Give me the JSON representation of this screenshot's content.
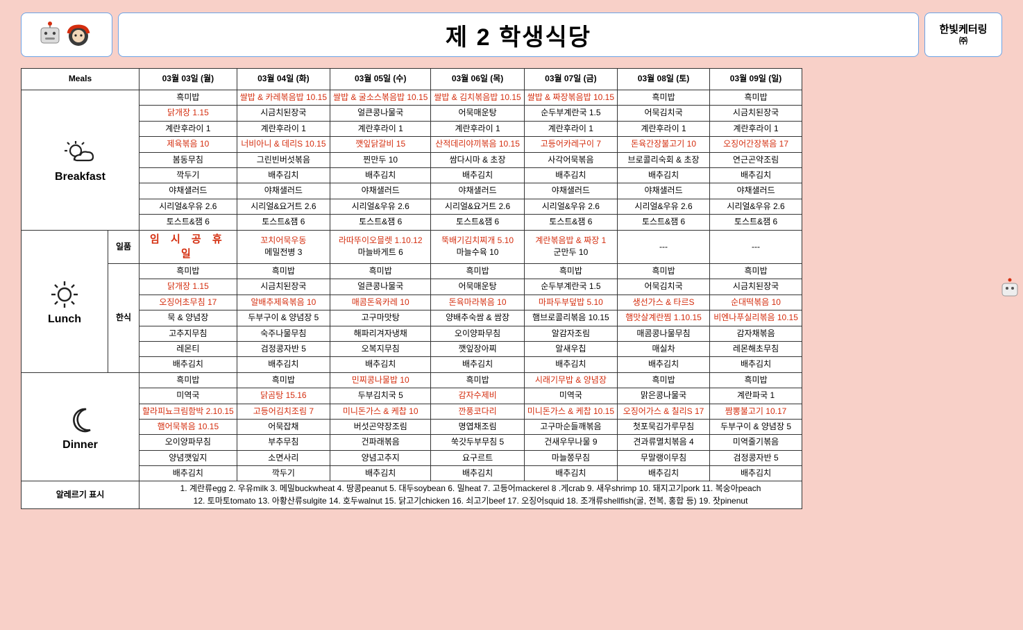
{
  "header": {
    "title": "제 2 학생식당",
    "brand": "한빛케터링",
    "brand_sub": "㈜"
  },
  "columns": {
    "meals_header": "Meals",
    "dates": [
      "03월 03일 (월)",
      "03월 04일 (화)",
      "03월 05일 (수)",
      "03월 06일 (목)",
      "03월 07일 (금)",
      "03월 08일 (토)",
      "03월 09일 (일)"
    ]
  },
  "meals": {
    "breakfast": {
      "label": "Breakfast",
      "rows": [
        [
          {
            "t": "흑미밥"
          },
          {
            "t": "쌀밥 & 카레볶음밥 10.15",
            "r": 1
          },
          {
            "t": "쌀밥 & 굴소스볶음밥 10.15",
            "r": 1
          },
          {
            "t": "쌀밥 & 김치볶음밥 10.15",
            "r": 1
          },
          {
            "t": "쌀밥 & 짜장볶음밥 10.15",
            "r": 1
          },
          {
            "t": "흑미밥"
          },
          {
            "t": "흑미밥"
          }
        ],
        [
          {
            "t": "닭개장 1.15",
            "r": 1
          },
          {
            "t": "시금치된장국"
          },
          {
            "t": "얼큰콩나물국"
          },
          {
            "t": "어묵매운탕"
          },
          {
            "t": "순두부계란국 1.5"
          },
          {
            "t": "어묵김치국"
          },
          {
            "t": "시금치된장국"
          }
        ],
        [
          {
            "t": "계란후라이 1"
          },
          {
            "t": "계란후라이 1"
          },
          {
            "t": "계란후라이 1"
          },
          {
            "t": "계란후라이 1"
          },
          {
            "t": "계란후라이 1"
          },
          {
            "t": "계란후라이 1"
          },
          {
            "t": "계란후라이 1"
          }
        ],
        [
          {
            "t": "제육볶음 10",
            "r": 1
          },
          {
            "t": "너비아니 & 데리S 10.15",
            "r": 1
          },
          {
            "t": "깻잎닭갈비 15",
            "r": 1
          },
          {
            "t": "산적데리야끼볶음 10.15",
            "r": 1
          },
          {
            "t": "고등어카레구이 7",
            "r": 1
          },
          {
            "t": "돈육간장불고기 10",
            "r": 1
          },
          {
            "t": "오징어간장볶음 17",
            "r": 1
          }
        ],
        [
          {
            "t": "봄동무침"
          },
          {
            "t": "그린빈버섯볶음"
          },
          {
            "t": "찐만두 10"
          },
          {
            "t": "쌈다시마 & 초장"
          },
          {
            "t": "사각어묵볶음"
          },
          {
            "t": "브로콜리숙회 & 초장"
          },
          {
            "t": "연근곤약조림"
          }
        ],
        [
          {
            "t": "깍두기"
          },
          {
            "t": "배추김치"
          },
          {
            "t": "배추김치"
          },
          {
            "t": "배추김치"
          },
          {
            "t": "배추김치"
          },
          {
            "t": "배추김치"
          },
          {
            "t": "배추김치"
          }
        ],
        [
          {
            "t": "야채샐러드"
          },
          {
            "t": "야채샐러드"
          },
          {
            "t": "야채샐러드"
          },
          {
            "t": "야채샐러드"
          },
          {
            "t": "야채샐러드"
          },
          {
            "t": "야채샐러드"
          },
          {
            "t": "야채샐러드"
          }
        ],
        [
          {
            "t": "시리얼&우유 2.6"
          },
          {
            "t": "시리얼&요거트 2.6"
          },
          {
            "t": "시리얼&우유 2.6"
          },
          {
            "t": "시리얼&요거트 2.6"
          },
          {
            "t": "시리얼&우유 2.6"
          },
          {
            "t": "시리얼&우유 2.6"
          },
          {
            "t": "시리얼&우유 2.6"
          }
        ],
        [
          {
            "t": "토스트&잼 6"
          },
          {
            "t": "토스트&잼 6"
          },
          {
            "t": "토스트&잼 6"
          },
          {
            "t": "토스트&잼 6"
          },
          {
            "t": "토스트&잼 6"
          },
          {
            "t": "토스트&잼 6"
          },
          {
            "t": "토스트&잼 6"
          }
        ]
      ]
    },
    "lunch": {
      "label": "Lunch",
      "sub1": "일품",
      "sub2": "한식",
      "ilpum": [
        {
          "holiday": "임 시 공 휴 일"
        },
        [
          {
            "t": "꼬치어묵우동",
            "r": 1
          },
          {
            "t": "메밀전병 3"
          }
        ],
        [
          {
            "t": "라따뚜이오믈렛 1.10.12",
            "r": 1
          },
          {
            "t": "마늘바게트 6"
          }
        ],
        [
          {
            "t": "뚝배기김치찌개 5.10",
            "r": 1
          },
          {
            "t": "마늘수육 10"
          }
        ],
        [
          {
            "t": "계란볶음밥 & 짜장 1",
            "r": 1
          },
          {
            "t": "군만두 10"
          }
        ],
        {
          "t": "---"
        },
        {
          "t": "---"
        }
      ],
      "hansik": [
        [
          {
            "t": "흑미밥"
          },
          {
            "t": "흑미밥"
          },
          {
            "t": "흑미밥"
          },
          {
            "t": "흑미밥"
          },
          {
            "t": "흑미밥"
          },
          {
            "t": "흑미밥"
          },
          {
            "t": "흑미밥"
          }
        ],
        [
          {
            "t": "닭개장 1.15",
            "r": 1
          },
          {
            "t": "시금치된장국"
          },
          {
            "t": "얼큰콩나물국"
          },
          {
            "t": "어묵매운탕"
          },
          {
            "t": "순두부계란국 1.5"
          },
          {
            "t": "어묵김치국"
          },
          {
            "t": "시금치된장국"
          }
        ],
        [
          {
            "t": "오징어초무침 17",
            "r": 1
          },
          {
            "t": "알배추제육볶음 10",
            "r": 1
          },
          {
            "t": "매콤돈육카레 10",
            "r": 1
          },
          {
            "t": "돈육마라볶음 10",
            "r": 1
          },
          {
            "t": "마파두부덮밥 5.10",
            "r": 1
          },
          {
            "t": "생선가스 & 타르S",
            "r": 1
          },
          {
            "t": "순대떡볶음 10",
            "r": 1
          }
        ],
        [
          {
            "t": "묵 & 양념장"
          },
          {
            "t": "두부구이 & 양념장 5"
          },
          {
            "t": "고구마맛탕"
          },
          {
            "t": "양배추숙쌈 & 쌈장"
          },
          {
            "t": "햄브로콜리볶음 10.15"
          },
          {
            "t": "햄맛살계란찜 1.10.15",
            "r": 1
          },
          {
            "t": "비엔나푸실리볶음 10.15",
            "r": 1
          }
        ],
        [
          {
            "t": "고추지무침"
          },
          {
            "t": "숙주나물무침"
          },
          {
            "t": "해파리겨자냉채"
          },
          {
            "t": "오이양파무침"
          },
          {
            "t": "알감자조림"
          },
          {
            "t": "매콤콩나물무침"
          },
          {
            "t": "감자채볶음"
          }
        ],
        [
          {
            "t": "레몬티"
          },
          {
            "t": "검정콩자반 5"
          },
          {
            "t": "오복지무침"
          },
          {
            "t": "깻잎장아찌"
          },
          {
            "t": "알새우칩"
          },
          {
            "t": "매실차"
          },
          {
            "t": "레몬해초무침"
          }
        ],
        [
          {
            "t": "배추김치"
          },
          {
            "t": "배추김치"
          },
          {
            "t": "배추김치"
          },
          {
            "t": "배추김치"
          },
          {
            "t": "배추김치"
          },
          {
            "t": "배추김치"
          },
          {
            "t": "배추김치"
          }
        ]
      ]
    },
    "dinner": {
      "label": "Dinner",
      "rows": [
        [
          {
            "t": "흑미밥"
          },
          {
            "t": "흑미밥"
          },
          {
            "t": "민찌콩나물밥 10",
            "r": 1
          },
          {
            "t": "흑미밥"
          },
          {
            "t": "시래기무밥 & 양념장",
            "r": 1
          },
          {
            "t": "흑미밥"
          },
          {
            "t": "흑미밥"
          }
        ],
        [
          {
            "t": "미역국"
          },
          {
            "t": "닭곰탕 15.16",
            "r": 1
          },
          {
            "t": "두부김치국 5"
          },
          {
            "t": "감자수제비",
            "r": 1
          },
          {
            "t": "미역국"
          },
          {
            "t": "맑은콩나물국"
          },
          {
            "t": "계란파국 1"
          }
        ],
        [
          {
            "t": "할라피뇨크림함박 2.10.15",
            "r": 1
          },
          {
            "t": "고등어김치조림 7",
            "r": 1
          },
          {
            "t": "미니돈가스 & 케찹 10",
            "r": 1
          },
          {
            "t": "깐풍코다리",
            "r": 1
          },
          {
            "t": "미니돈가스 & 케찹 10.15",
            "r": 1
          },
          {
            "t": "오징어가스 & 칠리S 17",
            "r": 1
          },
          {
            "t": "짬뽕불고기 10.17",
            "r": 1
          }
        ],
        [
          {
            "t": "햄어묵볶음 10.15",
            "r": 1
          },
          {
            "t": "어묵잡채"
          },
          {
            "t": "버섯곤약장조림"
          },
          {
            "t": "명엽채조림"
          },
          {
            "t": "고구마순들깨볶음"
          },
          {
            "t": "첫포묵김가루무침"
          },
          {
            "t": "두부구이 & 양념장 5"
          }
        ],
        [
          {
            "t": "오이양파무침"
          },
          {
            "t": "부추무침"
          },
          {
            "t": "건파래볶음"
          },
          {
            "t": "쑥갓두부무침 5"
          },
          {
            "t": "건새우무나물 9"
          },
          {
            "t": "견과류멸치볶음 4"
          },
          {
            "t": "미역줄기볶음"
          }
        ],
        [
          {
            "t": "양념깻잎지"
          },
          {
            "t": "소면사리"
          },
          {
            "t": "양념고추지"
          },
          {
            "t": "요구르트"
          },
          {
            "t": "마늘쫑무침"
          },
          {
            "t": "무말랭이무침"
          },
          {
            "t": "검정콩자반 5"
          }
        ],
        [
          {
            "t": "배추김치"
          },
          {
            "t": "깍두기"
          },
          {
            "t": "배추김치"
          },
          {
            "t": "배추김치"
          },
          {
            "t": "배추김치"
          },
          {
            "t": "배추김치"
          },
          {
            "t": "배추김치"
          }
        ]
      ]
    }
  },
  "allergy": {
    "label": "알레르기 표시",
    "line1": "1. 계란류egg 2. 우유milk 3. 메밀buckwheat 4. 땅콩peanut 5. 대두soybean 6. 밀heat 7. 고등어mackerel 8 .게crab 9. 새우shrimp 10. 돼지고기pork 11. 복숭아peach",
    "line2": "12. 토마토tomato 13. 아황산류sulgite 14. 호두walnut 15. 닭고기chicken 16. 쇠고기beef 17. 오징어squid 18. 조개류shellfish(굴, 전복, 홍합 등) 19. 잣pinenut"
  },
  "colors": {
    "page_bg": "#f8d0c8",
    "border": "#333333",
    "hdr_border": "#6ba3e6",
    "highlight": "#d42d0e"
  }
}
